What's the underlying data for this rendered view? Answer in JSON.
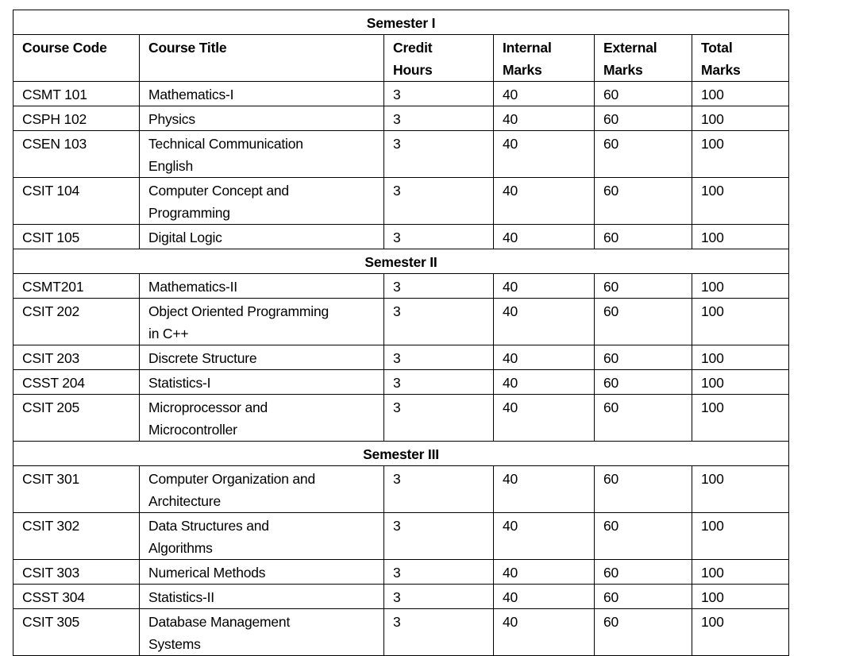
{
  "headers": [
    "Course Code",
    "Course Title",
    "Credit Hours",
    "Internal Marks",
    "External Marks",
    "Total Marks"
  ],
  "semesters": [
    {
      "title": "Semester I",
      "courses": [
        {
          "code": "CSMT 101",
          "title": "Mathematics-I",
          "credit": "3",
          "internal": "40",
          "external": "60",
          "total": "100"
        },
        {
          "code": "CSPH 102",
          "title": "Physics",
          "credit": "3",
          "internal": "40",
          "external": "60",
          "total": "100"
        },
        {
          "code": "CSEN 103",
          "title": "Technical Communication English",
          "credit": "3",
          "internal": "40",
          "external": "60",
          "total": "100"
        },
        {
          "code": "CSIT 104",
          "title": "Computer Concept and Programming",
          "credit": "3",
          "internal": "40",
          "external": "60",
          "total": "100"
        },
        {
          "code": "CSIT 105",
          "title": "Digital Logic",
          "credit": "3",
          "internal": "40",
          "external": "60",
          "total": "100"
        }
      ]
    },
    {
      "title": "Semester II",
      "courses": [
        {
          "code": "CSMT201",
          "title": "Mathematics-II",
          "credit": "3",
          "internal": "40",
          "external": "60",
          "total": "100"
        },
        {
          "code": "CSIT 202",
          "title": "Object Oriented Programming in C++",
          "credit": "3",
          "internal": "40",
          "external": "60",
          "total": "100"
        },
        {
          "code": "CSIT 203",
          "title": "Discrete Structure",
          "credit": "3",
          "internal": "40",
          "external": "60",
          "total": "100"
        },
        {
          "code": "CSST 204",
          "title": "Statistics-I",
          "credit": "3",
          "internal": "40",
          "external": "60",
          "total": "100"
        },
        {
          "code": "CSIT 205",
          "title": "Microprocessor and Microcontroller",
          "credit": "3",
          "internal": "40",
          "external": "60",
          "total": "100"
        }
      ]
    },
    {
      "title": "Semester III",
      "courses": [
        {
          "code": "CSIT 301",
          "title": "Computer Organization and Architecture",
          "credit": "3",
          "internal": "40",
          "external": "60",
          "total": "100"
        },
        {
          "code": "CSIT 302",
          "title": "Data Structures and Algorithms",
          "credit": "3",
          "internal": "40",
          "external": "60",
          "total": "100"
        },
        {
          "code": "CSIT 303",
          "title": "Numerical Methods",
          "credit": "3",
          "internal": "40",
          "external": "60",
          "total": "100"
        },
        {
          "code": "CSST 304",
          "title": "Statistics-II",
          "credit": "3",
          "internal": "40",
          "external": "60",
          "total": "100"
        },
        {
          "code": "CSIT 305",
          "title": "Database Management Systems",
          "credit": "3",
          "internal": "40",
          "external": "60",
          "total": "100"
        }
      ]
    }
  ]
}
